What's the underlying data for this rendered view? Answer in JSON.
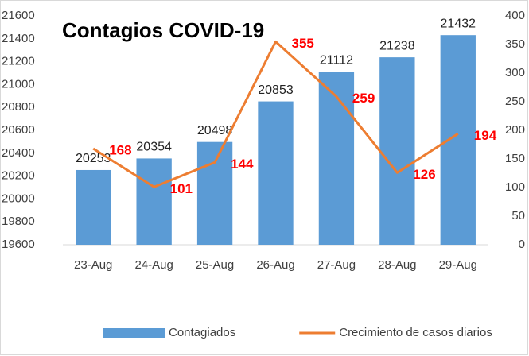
{
  "chart_data": {
    "type": "bar-line",
    "title": "Contagios COVID-19",
    "categories": [
      "23-Aug",
      "24-Aug",
      "25-Aug",
      "26-Aug",
      "27-Aug",
      "28-Aug",
      "29-Aug"
    ],
    "series": [
      {
        "name": "Contagiados",
        "color": "#5b9bd5",
        "type": "bar",
        "values": [
          20253,
          20354,
          20498,
          20853,
          21112,
          21238,
          21432
        ]
      },
      {
        "name": "Crecimiento de casos diarios",
        "color": "#ed7d31",
        "type": "line",
        "axis": "y2",
        "values": [
          168,
          101,
          144,
          355,
          259,
          126,
          194
        ]
      }
    ],
    "ylim": [
      19600,
      21600
    ],
    "yticks": [
      19600,
      19800,
      20000,
      20200,
      20400,
      20600,
      20800,
      21000,
      21200,
      21400,
      21600
    ],
    "y2lim": [
      0,
      400
    ],
    "y2ticks": [
      0,
      50,
      100,
      150,
      200,
      250,
      300,
      350,
      400
    ],
    "grid": false,
    "legend": "bottom"
  }
}
